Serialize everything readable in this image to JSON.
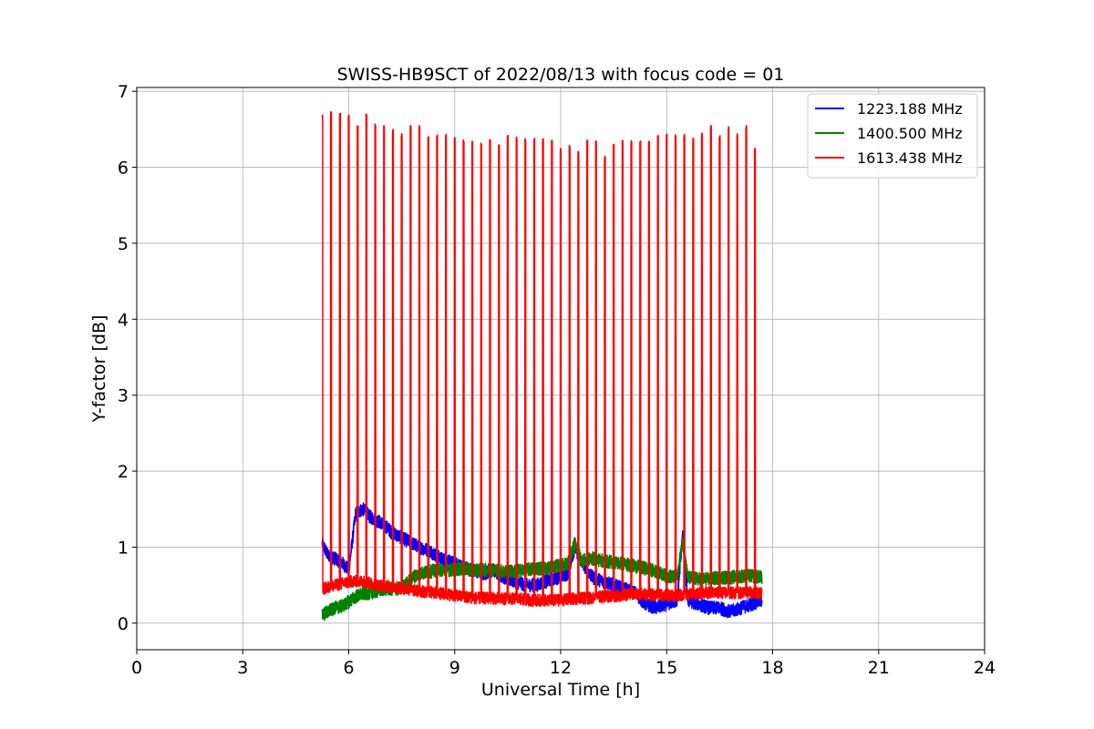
{
  "chart_data": {
    "type": "line",
    "title": "SWISS-HB9SCT of 2022/08/13 with focus code = 01",
    "xlabel": "Universal Time [h]",
    "ylabel": "Y-factor [dB]",
    "xlim": [
      0,
      24
    ],
    "ylim": [
      -0.35,
      7.05
    ],
    "xticks": [
      0,
      3,
      6,
      9,
      12,
      15,
      18,
      21,
      24
    ],
    "yticks": [
      0,
      1,
      2,
      3,
      4,
      5,
      6,
      7
    ],
    "grid": true,
    "legend_position": "top-right",
    "series": [
      {
        "name": "1223.188 MHz",
        "color": "#0000ff",
        "x": [
          5.25,
          5.4,
          5.6,
          5.8,
          6.0,
          6.2,
          6.4,
          6.6,
          6.8,
          7.0,
          7.2,
          7.4,
          7.6,
          7.8,
          8.0,
          8.3,
          8.6,
          8.9,
          9.2,
          9.5,
          9.8,
          10.1,
          10.4,
          10.7,
          11.0,
          11.3,
          11.6,
          11.9,
          12.2,
          12.4,
          12.6,
          12.9,
          13.2,
          13.5,
          13.8,
          14.1,
          14.4,
          14.7,
          15.0,
          15.3,
          15.45,
          15.6,
          15.9,
          16.2,
          16.5,
          16.8,
          17.1,
          17.4,
          17.7
        ],
        "y": [
          1.05,
          0.9,
          0.85,
          0.8,
          0.7,
          1.45,
          1.5,
          1.4,
          1.35,
          1.3,
          1.2,
          1.15,
          1.1,
          1.05,
          1.0,
          0.95,
          0.85,
          0.8,
          0.75,
          0.7,
          0.65,
          0.7,
          0.6,
          0.55,
          0.5,
          0.5,
          0.55,
          0.6,
          0.65,
          1.0,
          0.8,
          0.6,
          0.55,
          0.5,
          0.45,
          0.4,
          0.25,
          0.2,
          0.25,
          0.3,
          1.15,
          0.3,
          0.25,
          0.2,
          0.2,
          0.15,
          0.2,
          0.25,
          0.3
        ],
        "noise": 0.09
      },
      {
        "name": "1400.500 MHz",
        "color": "#008000",
        "x": [
          5.25,
          5.4,
          5.6,
          5.8,
          6.0,
          6.2,
          6.4,
          6.6,
          6.8,
          7.0,
          7.2,
          7.4,
          7.6,
          7.8,
          8.0,
          8.3,
          8.6,
          8.9,
          9.2,
          9.5,
          9.8,
          10.1,
          10.4,
          10.7,
          11.0,
          11.3,
          11.6,
          11.9,
          12.2,
          12.4,
          12.6,
          12.9,
          13.2,
          13.5,
          13.8,
          14.1,
          14.4,
          14.7,
          15.0,
          15.3,
          15.45,
          15.6,
          15.9,
          16.2,
          16.5,
          16.8,
          17.1,
          17.4,
          17.7
        ],
        "y": [
          0.1,
          0.15,
          0.2,
          0.22,
          0.28,
          0.35,
          0.38,
          0.4,
          0.42,
          0.45,
          0.45,
          0.45,
          0.5,
          0.6,
          0.65,
          0.68,
          0.7,
          0.7,
          0.72,
          0.7,
          0.7,
          0.7,
          0.68,
          0.68,
          0.7,
          0.72,
          0.72,
          0.75,
          0.78,
          1.05,
          0.82,
          0.85,
          0.82,
          0.8,
          0.78,
          0.75,
          0.72,
          0.68,
          0.62,
          0.6,
          1.1,
          0.6,
          0.58,
          0.58,
          0.6,
          0.6,
          0.62,
          0.62,
          0.6
        ],
        "noise": 0.09
      },
      {
        "name": "1613.438 MHz",
        "color": "#ff0000",
        "x": [
          5.25,
          5.5,
          5.8,
          6.1,
          6.4,
          6.8,
          7.2,
          7.6,
          8.0,
          8.4,
          8.8,
          9.2,
          9.6,
          10.0,
          10.4,
          10.8,
          11.2,
          11.6,
          12.0,
          12.4,
          12.8,
          13.2,
          13.6,
          14.0,
          14.4,
          14.8,
          15.2,
          15.6,
          16.0,
          16.4,
          16.8,
          17.2,
          17.7
        ],
        "y": [
          0.45,
          0.48,
          0.52,
          0.55,
          0.55,
          0.5,
          0.48,
          0.45,
          0.42,
          0.4,
          0.38,
          0.35,
          0.33,
          0.33,
          0.32,
          0.32,
          0.3,
          0.3,
          0.3,
          0.32,
          0.33,
          0.35,
          0.36,
          0.38,
          0.38,
          0.37,
          0.36,
          0.38,
          0.4,
          0.4,
          0.4,
          0.4,
          0.4
        ],
        "noise": 0.08,
        "spikes": {
          "x": [
            5.25,
            5.5,
            5.75,
            6.0,
            6.25,
            6.5,
            6.75,
            7.0,
            7.25,
            7.5,
            7.75,
            8.0,
            8.25,
            8.5,
            8.75,
            9.0,
            9.25,
            9.5,
            9.75,
            10.0,
            10.25,
            10.5,
            10.75,
            11.0,
            11.25,
            11.5,
            11.75,
            12.0,
            12.25,
            12.5,
            12.75,
            13.0,
            13.25,
            13.5,
            13.75,
            14.0,
            14.25,
            14.5,
            14.75,
            15.0,
            15.25,
            15.5,
            15.75,
            16.0,
            16.25,
            16.5,
            16.75,
            17.0,
            17.25,
            17.5
          ],
          "peak": [
            6.7,
            6.73,
            6.72,
            6.7,
            6.55,
            6.7,
            6.57,
            6.55,
            6.5,
            6.45,
            6.56,
            6.56,
            6.4,
            6.43,
            6.44,
            6.4,
            6.36,
            6.35,
            6.33,
            6.37,
            6.31,
            6.42,
            6.4,
            6.38,
            6.38,
            6.38,
            6.37,
            6.25,
            6.3,
            6.21,
            6.36,
            6.35,
            6.15,
            6.31,
            6.37,
            6.36,
            6.35,
            6.34,
            6.43,
            6.45,
            6.43,
            6.44,
            6.38,
            6.45,
            6.55,
            6.42,
            6.55,
            6.44,
            6.55,
            6.25
          ]
        }
      }
    ]
  }
}
